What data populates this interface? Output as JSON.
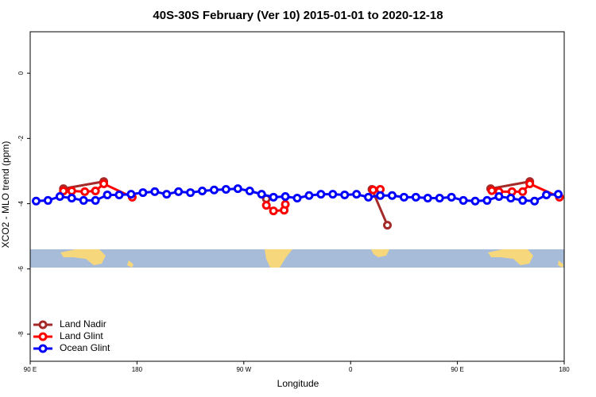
{
  "chart_data": {
    "type": "line",
    "title": "40S-30S February (Ver 10)   2015-01-01 to 2020-12-18",
    "xlabel": "Longitude",
    "ylabel": "XCO2 - MLO trend (ppm)",
    "xlim": [
      90,
      540
    ],
    "xticks": [
      {
        "value": 90,
        "label": "90 E"
      },
      180,
      {
        "value": 270,
        "label": "90 W"
      },
      {
        "value": 360,
        "label": "0"
      },
      {
        "value": 450,
        "label": "90 E"
      },
      {
        "value": 540,
        "label": "180"
      }
    ],
    "ylim": [
      -8.83,
      1.27
    ],
    "yticks": [
      0,
      -2,
      -4,
      -6,
      -8
    ],
    "legend": "bottom-left",
    "series": [
      {
        "name": "Land Nadir",
        "color": "#a52a2a",
        "x": [
          118,
          152,
          null,
          289,
          null,
          378,
          391,
          null,
          478,
          511
        ],
        "values": [
          -3.54,
          -3.32,
          null,
          -3.85,
          null,
          -3.56,
          -4.66,
          null,
          -3.54,
          -3.32
        ]
      },
      {
        "name": "Land Glint",
        "color": "#ff0000",
        "x": [
          118,
          125,
          136,
          145,
          152,
          176,
          null,
          289,
          295,
          304,
          305,
          null,
          379,
          385,
          null,
          479,
          485,
          496,
          505,
          511,
          536
        ],
        "values": [
          -3.61,
          -3.61,
          -3.63,
          -3.61,
          -3.39,
          -3.8,
          null,
          -4.05,
          -4.22,
          -4.2,
          -4.02,
          null,
          -3.58,
          -3.56,
          null,
          -3.6,
          -3.63,
          -3.63,
          -3.63,
          -3.39,
          -3.8
        ]
      },
      {
        "name": "Ocean Glint",
        "color": "#0000ff",
        "x": [
          95,
          105,
          115,
          125,
          135,
          145,
          155,
          165,
          175,
          185,
          195,
          205,
          215,
          225,
          235,
          245,
          255,
          265,
          275,
          285,
          295,
          305,
          315,
          325,
          335,
          345,
          355,
          365,
          375,
          385,
          395,
          405,
          415,
          425,
          435,
          445,
          455,
          465,
          475,
          485,
          495,
          505,
          515,
          525,
          535
        ],
        "values": [
          -3.92,
          -3.9,
          -3.78,
          -3.83,
          -3.9,
          -3.9,
          -3.73,
          -3.73,
          -3.71,
          -3.66,
          -3.63,
          -3.71,
          -3.63,
          -3.66,
          -3.61,
          -3.58,
          -3.56,
          -3.54,
          -3.61,
          -3.71,
          -3.8,
          -3.78,
          -3.83,
          -3.75,
          -3.71,
          -3.71,
          -3.73,
          -3.71,
          -3.8,
          -3.75,
          -3.75,
          -3.8,
          -3.8,
          -3.83,
          -3.83,
          -3.8,
          -3.9,
          -3.92,
          -3.9,
          -3.78,
          -3.83,
          -3.9,
          -3.92,
          -3.73,
          -3.71
        ]
      }
    ]
  }
}
